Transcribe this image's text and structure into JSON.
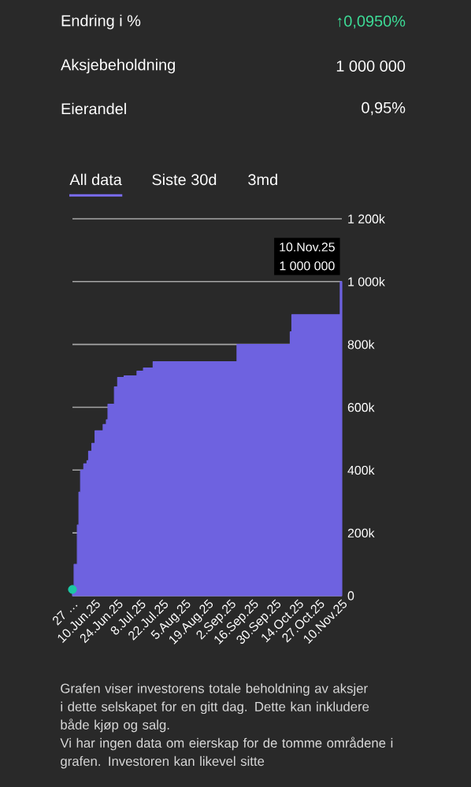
{
  "chart_data": {
    "type": "area",
    "annotations": [
      "Endring i %",
      "↑0,0950%",
      "Aksjebeholdning",
      "1 000 000",
      "Eierandel",
      "0,95%",
      "All data",
      "Siste 30d",
      "3md",
      "10.Nov.25",
      "1 000 000",
      "Grafen viser investorens totale beholdning av aksjer i dette selskapet for en gitt dag. Dette kan inkludere både kjøp og salg.",
      "Vi har ingen data om eierskap for de tomme områdene i grafen. Investoren kan likevel sitte"
    ],
    "series": [
      {
        "color": "#6e62e0",
        "x": [
          "2025-05-27",
          "2025-05-28",
          "2025-05-28",
          "2025-05-30",
          "2025-05-30",
          "2025-05-31",
          "2025-05-31",
          "2025-06-01",
          "2025-06-01",
          "2025-06-03",
          "2025-06-03",
          "2025-06-05",
          "2025-06-05",
          "2025-06-06",
          "2025-06-06",
          "2025-06-08",
          "2025-06-08",
          "2025-06-10",
          "2025-06-10",
          "2025-06-15",
          "2025-06-15",
          "2025-06-17",
          "2025-06-17",
          "2025-06-18",
          "2025-06-18",
          "2025-06-22",
          "2025-06-22",
          "2025-06-24",
          "2025-06-24",
          "2025-06-28",
          "2025-06-28",
          "2025-07-06",
          "2025-07-06",
          "2025-07-10",
          "2025-07-10",
          "2025-07-16",
          "2025-07-16",
          "2025-09-06",
          "2025-09-06",
          "2025-10-09",
          "2025-10-09",
          "2025-10-10",
          "2025-10-10",
          "2025-11-09",
          "2025-11-09",
          "2025-11-10"
        ],
        "values": [
          20000,
          20000,
          100000,
          100000,
          225000,
          225000,
          330000,
          330000,
          400000,
          400000,
          420000,
          420000,
          430000,
          430000,
          460000,
          460000,
          485000,
          485000,
          525000,
          525000,
          545000,
          545000,
          560000,
          560000,
          610000,
          610000,
          665000,
          665000,
          695000,
          695000,
          700000,
          700000,
          715000,
          715000,
          725000,
          725000,
          745000,
          745000,
          800000,
          800000,
          840000,
          840000,
          895000,
          895000,
          1000000,
          1000000
        ]
      },
      {
        "type": "scatter",
        "marker": "circle",
        "color": "#1cc6a4",
        "x": [
          "2025-05-27"
        ],
        "values": [
          20000
        ]
      }
    ],
    "xlim": [
      "2025-05-27",
      "2025-11-10"
    ],
    "xticks": [
      {
        "value": "2025-05-27",
        "label": "27 …"
      },
      {
        "value": "2025-06-10",
        "label": "10.Jun.25"
      },
      {
        "value": "2025-06-24",
        "label": "24.Jun.25"
      },
      {
        "value": "2025-07-08",
        "label": "8.Jul.25"
      },
      {
        "value": "2025-07-22",
        "label": "22.Jul.25"
      },
      {
        "value": "2025-08-05",
        "label": "5.Aug.25"
      },
      {
        "value": "2025-08-19",
        "label": "19.Aug.25"
      },
      {
        "value": "2025-09-02",
        "label": "2.Sep.25"
      },
      {
        "value": "2025-09-16",
        "label": "16.Sep.25"
      },
      {
        "value": "2025-09-30",
        "label": "30.Sep.25"
      },
      {
        "value": "2025-10-14",
        "label": "14.Oct.25"
      },
      {
        "value": "2025-10-27",
        "label": "27.Oct.25"
      },
      {
        "value": "2025-11-10",
        "label": "10.Nov.25"
      }
    ],
    "ylim": [
      0,
      1200000
    ],
    "yticks": [
      0,
      {
        "value": 200000,
        "label": "200k"
      },
      {
        "value": 400000,
        "label": "400k"
      },
      {
        "value": 600000,
        "label": "600k"
      },
      {
        "value": 800000,
        "label": "800k"
      },
      {
        "value": 1000000,
        "label": "1 000k"
      },
      {
        "value": 1200000,
        "label": "1 200k"
      }
    ],
    "grid": "y"
  }
}
